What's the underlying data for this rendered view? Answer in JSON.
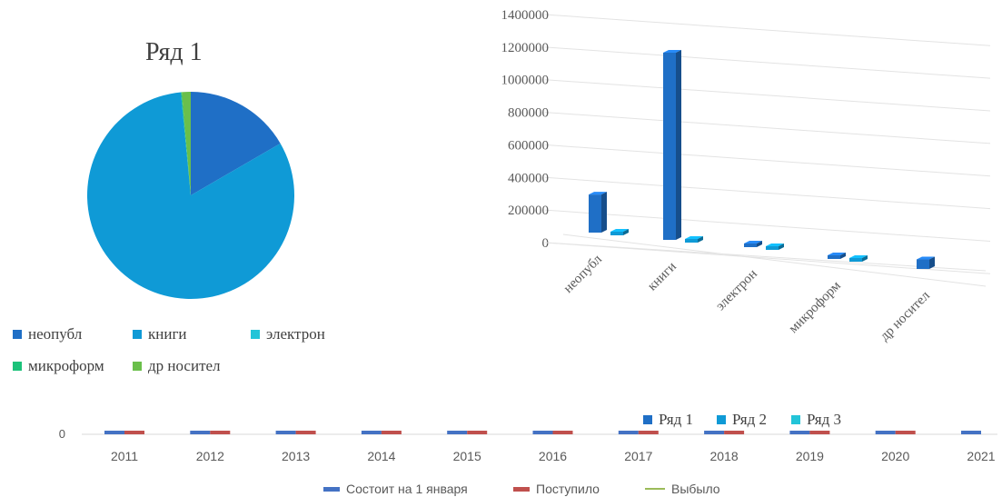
{
  "chart_data": [
    {
      "type": "pie",
      "title": "Ряд 1",
      "categories": [
        "неопубл",
        "книги",
        "электрон",
        "микроформ",
        "др носител"
      ],
      "values": [
        240000,
        1180000,
        0,
        2000,
        20000
      ],
      "colors": [
        "#1f6fc6",
        "#0f9ad6",
        "#23c4d8",
        "#1cc27a",
        "#6abf4b"
      ],
      "legend_position": "bottom"
    },
    {
      "type": "bar",
      "title": "",
      "categories": [
        "неопубл",
        "книги",
        "электрон",
        "микроформ",
        "др носител"
      ],
      "series": [
        {
          "name": "Ряд 1",
          "values": [
            240000,
            1180000,
            15000,
            10000,
            60000
          ],
          "color": "#1f6fc6"
        },
        {
          "name": "Ряд 2",
          "values": [
            10000,
            15000,
            10000,
            10000,
            0
          ],
          "color": "#0f9ad6"
        },
        {
          "name": "Ряд 3",
          "values": [
            0,
            0,
            0,
            0,
            0
          ],
          "color": "#23c4d8"
        }
      ],
      "yticks": [
        "1400000",
        "1200000",
        "1000000",
        "800000",
        "600000",
        "400000",
        "200000",
        "0"
      ],
      "ylim": [
        0,
        1400000
      ],
      "grid": true,
      "legend_position": "bottom-right"
    },
    {
      "type": "bar",
      "title": "",
      "categories": [
        "2011",
        "2012",
        "2013",
        "2014",
        "2015",
        "2016",
        "2017",
        "2018",
        "2019",
        "2020",
        "2021"
      ],
      "series": [
        {
          "name": "Состоит на 1 января",
          "color": "#4472c4"
        },
        {
          "name": "Поступило",
          "color": "#c0504d"
        },
        {
          "name": "Выбыло",
          "color": "#9bbb59"
        }
      ],
      "ytick_visible": "0",
      "legend_position": "bottom"
    }
  ]
}
